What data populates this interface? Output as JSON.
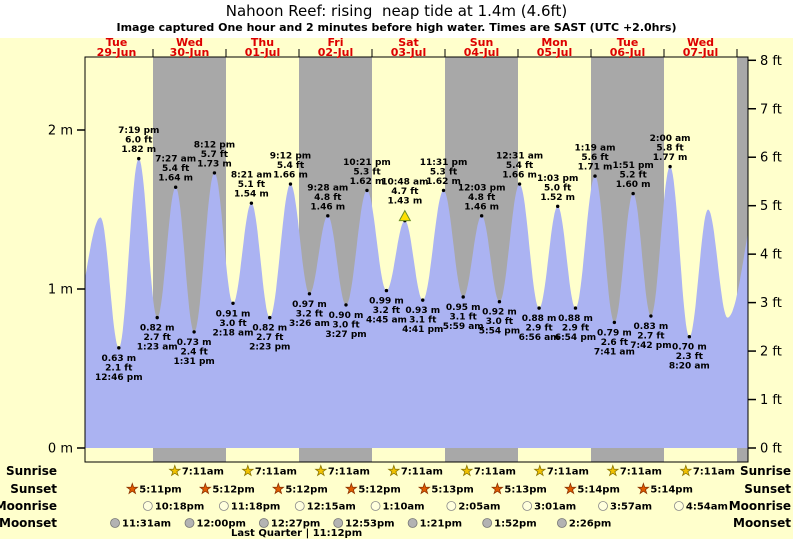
{
  "colors": {
    "page_bg": "#ffffcc",
    "plot_bg": "#ffffcc",
    "band_gray": "#a8a8a8",
    "tide_fill": "#abb3f2",
    "day_label": "#dd0000",
    "text": "#000000",
    "marker_fill": "#ffe000",
    "marker_stroke": "#6b8e23"
  },
  "chart_data": {
    "type": "area",
    "title": "Nahoon Reef: rising  neap tide at 1.4m (4.6ft)",
    "subtitle": "Image captured One hour and 2 minutes before high water. Times are SAST (UTC +2.0hrs)",
    "ylabel_left_unit": "m",
    "ylabel_right_unit": "ft",
    "left_ticks": [
      {
        "h": 0,
        "label": "0 m"
      },
      {
        "h": 1,
        "label": "1 m"
      },
      {
        "h": 2,
        "label": "2 m"
      }
    ],
    "right_ticks": [
      {
        "ft": 0,
        "label": "0 ft"
      },
      {
        "ft": 1,
        "label": "1 ft"
      },
      {
        "ft": 2,
        "label": "2 ft"
      },
      {
        "ft": 3,
        "label": "3 ft"
      },
      {
        "ft": 4,
        "label": "4 ft"
      },
      {
        "ft": 5,
        "label": "5 ft"
      },
      {
        "ft": 6,
        "label": "6 ft"
      },
      {
        "ft": 7,
        "label": "7 ft"
      },
      {
        "ft": 8,
        "label": "8 ft"
      }
    ],
    "days": [
      {
        "weekday": "Tue",
        "date": "29-Jun",
        "shade": "yellow"
      },
      {
        "weekday": "Wed",
        "date": "30-Jun",
        "shade": "gray"
      },
      {
        "weekday": "Thu",
        "date": "01-Jul",
        "shade": "yellow"
      },
      {
        "weekday": "Fri",
        "date": "02-Jul",
        "shade": "gray"
      },
      {
        "weekday": "Sat",
        "date": "03-Jul",
        "shade": "yellow"
      },
      {
        "weekday": "Sun",
        "date": "04-Jul",
        "shade": "gray"
      },
      {
        "weekday": "Mon",
        "date": "05-Jul",
        "shade": "yellow"
      },
      {
        "weekday": "Tue",
        "date": "06-Jul",
        "shade": "gray"
      },
      {
        "weekday": "Wed",
        "date": "07-Jul",
        "shade": "yellow"
      }
    ],
    "extremes": [
      {
        "t": -0.1,
        "h": 0.8,
        "type": "low",
        "labeled": false
      },
      {
        "t": 0.281,
        "h": 1.45,
        "type": "high",
        "labeled": false
      },
      {
        "t": 0.5319,
        "h": 0.63,
        "type": "low",
        "labeled": true,
        "time": "12:46 pm",
        "ft": "2.1 ft",
        "m": "0.63 m"
      },
      {
        "t": 0.8049,
        "h": 1.82,
        "type": "high",
        "labeled": true,
        "time": "7:19 pm",
        "ft": "6.0 ft",
        "m": "1.82 m"
      },
      {
        "t": 1.0576,
        "h": 0.82,
        "type": "low",
        "labeled": true,
        "time": "1:23 am",
        "ft": "2.7 ft",
        "m": "0.82 m"
      },
      {
        "t": 1.3104,
        "h": 1.64,
        "type": "high",
        "labeled": true,
        "time": "7:27 am",
        "ft": "5.4 ft",
        "m": "1.64 m"
      },
      {
        "t": 1.5632,
        "h": 0.73,
        "type": "low",
        "labeled": true,
        "time": "1:31 pm",
        "ft": "2.4 ft",
        "m": "0.73 m"
      },
      {
        "t": 1.8417,
        "h": 1.73,
        "type": "high",
        "labeled": true,
        "time": "8:12 pm",
        "ft": "5.7 ft",
        "m": "1.73 m"
      },
      {
        "t": 2.0958,
        "h": 0.91,
        "type": "low",
        "labeled": true,
        "time": "2:18 am",
        "ft": "3.0 ft",
        "m": "0.91 m"
      },
      {
        "t": 2.3479,
        "h": 1.54,
        "type": "high",
        "labeled": true,
        "time": "8:21 am",
        "ft": "5.1 ft",
        "m": "1.54 m"
      },
      {
        "t": 2.5993,
        "h": 0.82,
        "type": "low",
        "labeled": true,
        "time": "2:23 pm",
        "ft": "2.7 ft",
        "m": "0.82 m"
      },
      {
        "t": 2.8833,
        "h": 1.66,
        "type": "high",
        "labeled": true,
        "time": "9:12 pm",
        "ft": "5.4 ft",
        "m": "1.66 m"
      },
      {
        "t": 3.1431,
        "h": 0.97,
        "type": "low",
        "labeled": true,
        "time": "3:26 am",
        "ft": "3.2 ft",
        "m": "0.97 m"
      },
      {
        "t": 3.3944,
        "h": 1.46,
        "type": "high",
        "labeled": true,
        "time": "9:28 am",
        "ft": "4.8 ft",
        "m": "1.46 m"
      },
      {
        "t": 3.6438,
        "h": 0.9,
        "type": "low",
        "labeled": true,
        "time": "3:27 pm",
        "ft": "3.0 ft",
        "m": "0.90 m"
      },
      {
        "t": 3.9313,
        "h": 1.62,
        "type": "high",
        "labeled": true,
        "time": "10:21 pm",
        "ft": "5.3 ft",
        "m": "1.62 m"
      },
      {
        "t": 4.1979,
        "h": 0.99,
        "type": "low",
        "labeled": true,
        "time": "4:45 am",
        "ft": "3.2 ft",
        "m": "0.99 m"
      },
      {
        "t": 4.45,
        "h": 1.43,
        "type": "high",
        "labeled": true,
        "marker": true,
        "time": "10:48 am",
        "ft": "4.7 ft",
        "m": "1.43 m"
      },
      {
        "t": 4.6951,
        "h": 0.93,
        "type": "low",
        "labeled": true,
        "time": "4:41 pm",
        "ft": "3.1 ft",
        "m": "0.93 m"
      },
      {
        "t": 4.9799,
        "h": 1.62,
        "type": "high",
        "labeled": true,
        "time": "11:31 pm",
        "ft": "5.3 ft",
        "m": "1.62 m"
      },
      {
        "t": 5.2493,
        "h": 0.95,
        "type": "low",
        "labeled": true,
        "time": "5:59 am",
        "ft": "3.1 ft",
        "m": "0.95 m"
      },
      {
        "t": 5.5021,
        "h": 1.46,
        "type": "high",
        "labeled": true,
        "time": "12:03 pm",
        "ft": "4.8 ft",
        "m": "1.46 m"
      },
      {
        "t": 5.7458,
        "h": 0.92,
        "type": "low",
        "labeled": true,
        "time": "5:54 pm",
        "ft": "3.0 ft",
        "m": "0.92 m"
      },
      {
        "t": 6.0215,
        "h": 1.66,
        "type": "high",
        "labeled": true,
        "time": "12:31 am",
        "ft": "5.4 ft",
        "m": "1.66 m"
      },
      {
        "t": 6.2889,
        "h": 0.88,
        "type": "low",
        "labeled": true,
        "time": "6:56 am",
        "ft": "2.9 ft",
        "m": "0.88 m"
      },
      {
        "t": 6.5438,
        "h": 1.52,
        "type": "high",
        "labeled": true,
        "time": "1:03 pm",
        "ft": "5.0 ft",
        "m": "1.52 m"
      },
      {
        "t": 6.7875,
        "h": 0.88,
        "type": "low",
        "labeled": true,
        "time": "6:54 pm",
        "ft": "2.9 ft",
        "m": "0.88 m"
      },
      {
        "t": 7.0549,
        "h": 1.71,
        "type": "high",
        "labeled": true,
        "time": "1:19 am",
        "ft": "5.6 ft",
        "m": "1.71 m"
      },
      {
        "t": 7.3201,
        "h": 0.79,
        "type": "low",
        "labeled": true,
        "time": "7:41 am",
        "ft": "2.6 ft",
        "m": "0.79 m"
      },
      {
        "t": 7.5771,
        "h": 1.6,
        "type": "high",
        "labeled": true,
        "time": "1:51 pm",
        "ft": "5.2 ft",
        "m": "1.60 m"
      },
      {
        "t": 7.8208,
        "h": 0.83,
        "type": "low",
        "labeled": true,
        "time": "7:42 pm",
        "ft": "2.7 ft",
        "m": "0.83 m"
      },
      {
        "t": 8.0833,
        "h": 1.77,
        "type": "high",
        "labeled": true,
        "time": "2:00 am",
        "ft": "5.8 ft",
        "m": "1.77 m"
      },
      {
        "t": 8.3472,
        "h": 0.7,
        "type": "low",
        "labeled": true,
        "time": "8:20 am",
        "ft": "2.3 ft",
        "m": "0.70 m"
      },
      {
        "t": 8.604,
        "h": 1.5,
        "type": "high",
        "labeled": false
      },
      {
        "t": 8.87,
        "h": 0.82,
        "type": "low",
        "labeled": false
      },
      {
        "t": 9.36,
        "h": 1.7,
        "type": "high",
        "labeled": false
      }
    ]
  },
  "astro": {
    "rows": [
      {
        "id": "sunrise",
        "label": "Sunrise",
        "icon": "star",
        "icon_fill": "#f2c200",
        "icon_stroke": "#8a7500",
        "entries": [
          {
            "t": 1.2993,
            "time": "7:11am"
          },
          {
            "t": 2.2993,
            "time": "7:11am"
          },
          {
            "t": 3.2993,
            "time": "7:11am"
          },
          {
            "t": 4.2993,
            "time": "7:11am"
          },
          {
            "t": 5.2993,
            "time": "7:11am"
          },
          {
            "t": 6.2993,
            "time": "7:11am"
          },
          {
            "t": 7.2993,
            "time": "7:11am"
          },
          {
            "t": 8.2993,
            "time": "7:11am"
          }
        ]
      },
      {
        "id": "sunset",
        "label": "Sunset",
        "icon": "star",
        "icon_fill": "#e05a00",
        "icon_stroke": "#8c3200",
        "entries": [
          {
            "t": 0.71597,
            "time": "5:11pm"
          },
          {
            "t": 1.71667,
            "time": "5:12pm"
          },
          {
            "t": 2.71667,
            "time": "5:12pm"
          },
          {
            "t": 3.71667,
            "time": "5:12pm"
          },
          {
            "t": 4.71736,
            "time": "5:13pm"
          },
          {
            "t": 5.71736,
            "time": "5:13pm"
          },
          {
            "t": 6.71806,
            "time": "5:14pm"
          },
          {
            "t": 7.71806,
            "time": "5:14pm"
          }
        ]
      },
      {
        "id": "moonrise",
        "label": "Moonrise",
        "icon": "circle",
        "icon_fill": "#ffffdd",
        "icon_stroke": "#8a8a8a",
        "entries": [
          {
            "t": 0.92917,
            "time": "10:18pm"
          },
          {
            "t": 1.97083,
            "time": "11:18pm"
          },
          {
            "t": 3.01042,
            "time": "12:15am"
          },
          {
            "t": 4.04861,
            "time": "1:10am"
          },
          {
            "t": 5.08681,
            "time": "2:05am"
          },
          {
            "t": 6.12569,
            "time": "3:01am"
          },
          {
            "t": 7.16458,
            "time": "3:57am"
          },
          {
            "t": 8.20417,
            "time": "4:54am"
          }
        ]
      },
      {
        "id": "moonset",
        "label": "Moonset",
        "icon": "circle",
        "icon_fill": "#b3b3b3",
        "icon_stroke": "#777777",
        "entries": [
          {
            "t": 0.47986,
            "time": "11:31am"
          },
          {
            "t": 1.5,
            "time": "12:00pm"
          },
          {
            "t": 2.51875,
            "time": "12:27pm"
          },
          {
            "t": 3.53681,
            "time": "12:53pm"
          },
          {
            "t": 4.55625,
            "time": "1:21pm"
          },
          {
            "t": 5.57778,
            "time": "1:52pm"
          },
          {
            "t": 6.60139,
            "time": "2:26pm"
          }
        ]
      }
    ],
    "moon_phase": {
      "t": 2.96667,
      "text": "Last Quarter | 11:12pm"
    }
  }
}
